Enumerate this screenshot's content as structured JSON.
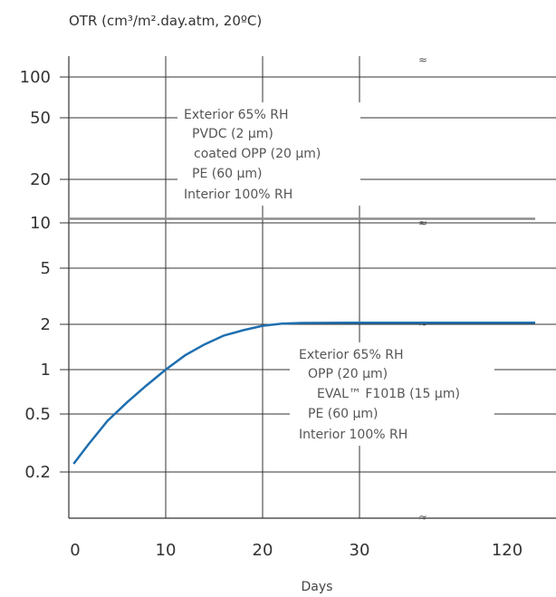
{
  "chart_data": {
    "type": "line",
    "ylabel": "OTR (cm³/m².day.atm, 20ºC)",
    "xlabel": "Days",
    "y_scale": "log",
    "y_ticks": [
      {
        "value": 100,
        "label": "100"
      },
      {
        "value": 50,
        "label": "50"
      },
      {
        "value": 20,
        "label": "20"
      },
      {
        "value": 10,
        "label": "10"
      },
      {
        "value": 5,
        "label": "5"
      },
      {
        "value": 2,
        "label": "2"
      },
      {
        "value": 1,
        "label": "1"
      },
      {
        "value": 0.5,
        "label": "0.5"
      },
      {
        "value": 0.2,
        "label": "0.2"
      }
    ],
    "x_ticks": [
      {
        "value": 0,
        "label": "0"
      },
      {
        "value": 10,
        "label": "10"
      },
      {
        "value": 20,
        "label": "20"
      },
      {
        "value": 30,
        "label": "30"
      },
      {
        "value": 120,
        "label": "120"
      }
    ],
    "axis_break_symbol": "≈",
    "grid": true,
    "series": [
      {
        "color": "#8c8c8c",
        "x": [
          0,
          120
        ],
        "y": [
          10.5,
          10.5
        ]
      },
      {
        "color": "#1f6fb0",
        "x": [
          0.5,
          2,
          4,
          6,
          8,
          10,
          12,
          14,
          16,
          18,
          20,
          22,
          24,
          30,
          120
        ],
        "y": [
          0.23,
          0.31,
          0.45,
          0.6,
          0.78,
          1.0,
          1.25,
          1.48,
          1.7,
          1.85,
          1.98,
          2.05,
          2.07,
          2.08,
          2.08
        ]
      }
    ],
    "annotations": [
      {
        "lines": [
          "Exterior 65% RH",
          "PVDC (2 µm)",
          "coated OPP (20 µm)",
          "PE (60 µm)",
          "Interior 100% RH"
        ]
      },
      {
        "lines": [
          "Exterior 65% RH",
          "OPP (20 µm)",
          "EVAL™ F101B (15 µm)",
          "PE (60 µm)",
          "Interior 100% RH"
        ]
      }
    ]
  }
}
